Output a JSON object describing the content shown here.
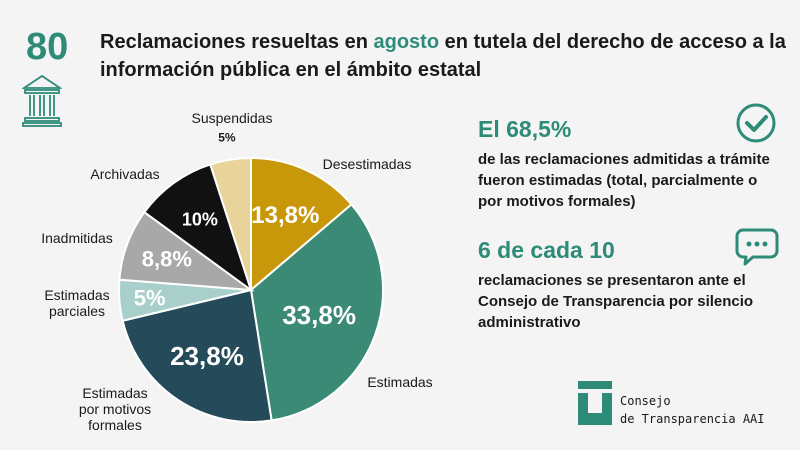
{
  "header": {
    "count": "80",
    "title_pre": "Reclamaciones resueltas en ",
    "title_accent": "agosto",
    "title_post": " en tutela del derecho de acceso a la información pública en el ámbito estatal"
  },
  "chart_data": {
    "type": "pie",
    "slices": [
      {
        "name": "Desestimadas",
        "value": 13.8,
        "value_label": "13,8%",
        "color": "#c9980a",
        "label_color": "#ffffff"
      },
      {
        "name": "Estimadas",
        "value": 33.8,
        "value_label": "33,8%",
        "color": "#3a8a76",
        "label_color": "#ffffff"
      },
      {
        "name": "Estimadas por motivos formales",
        "value": 23.8,
        "value_label": "23,8%",
        "color": "#254a5a",
        "label_color": "#ffffff"
      },
      {
        "name": "Estimadas parciales",
        "value": 5,
        "value_label": "5%",
        "color": "#a9cfcb",
        "label_color": "#ffffff"
      },
      {
        "name": "Inadmitidas",
        "value": 8.8,
        "value_label": "8,8%",
        "color": "#a8a8a8",
        "label_color": "#ffffff"
      },
      {
        "name": "Archivadas",
        "value": 10,
        "value_label": "10%",
        "color": "#111111",
        "label_color": "#ffffff"
      },
      {
        "name": "Suspendidas",
        "value": 5,
        "value_label": "5%",
        "color": "#e8d49a",
        "label_color": "#1a1a1a"
      }
    ]
  },
  "stats": [
    {
      "headline": "El 68,5%",
      "text": "de las reclamaciones admitidas a trámite fueron estimadas (total, parcialmente o por motivos formales)",
      "icon": "check-circle-icon"
    },
    {
      "headline": "6 de cada 10",
      "text": "reclamaciones se presentaron ante el Consejo de Transparencia por silencio administrativo",
      "icon": "chat-bubble-icon"
    }
  ],
  "logo": {
    "line1": "Consejo",
    "line2": "de Transparencia AAI"
  },
  "colors": {
    "accent": "#2e8b78"
  }
}
